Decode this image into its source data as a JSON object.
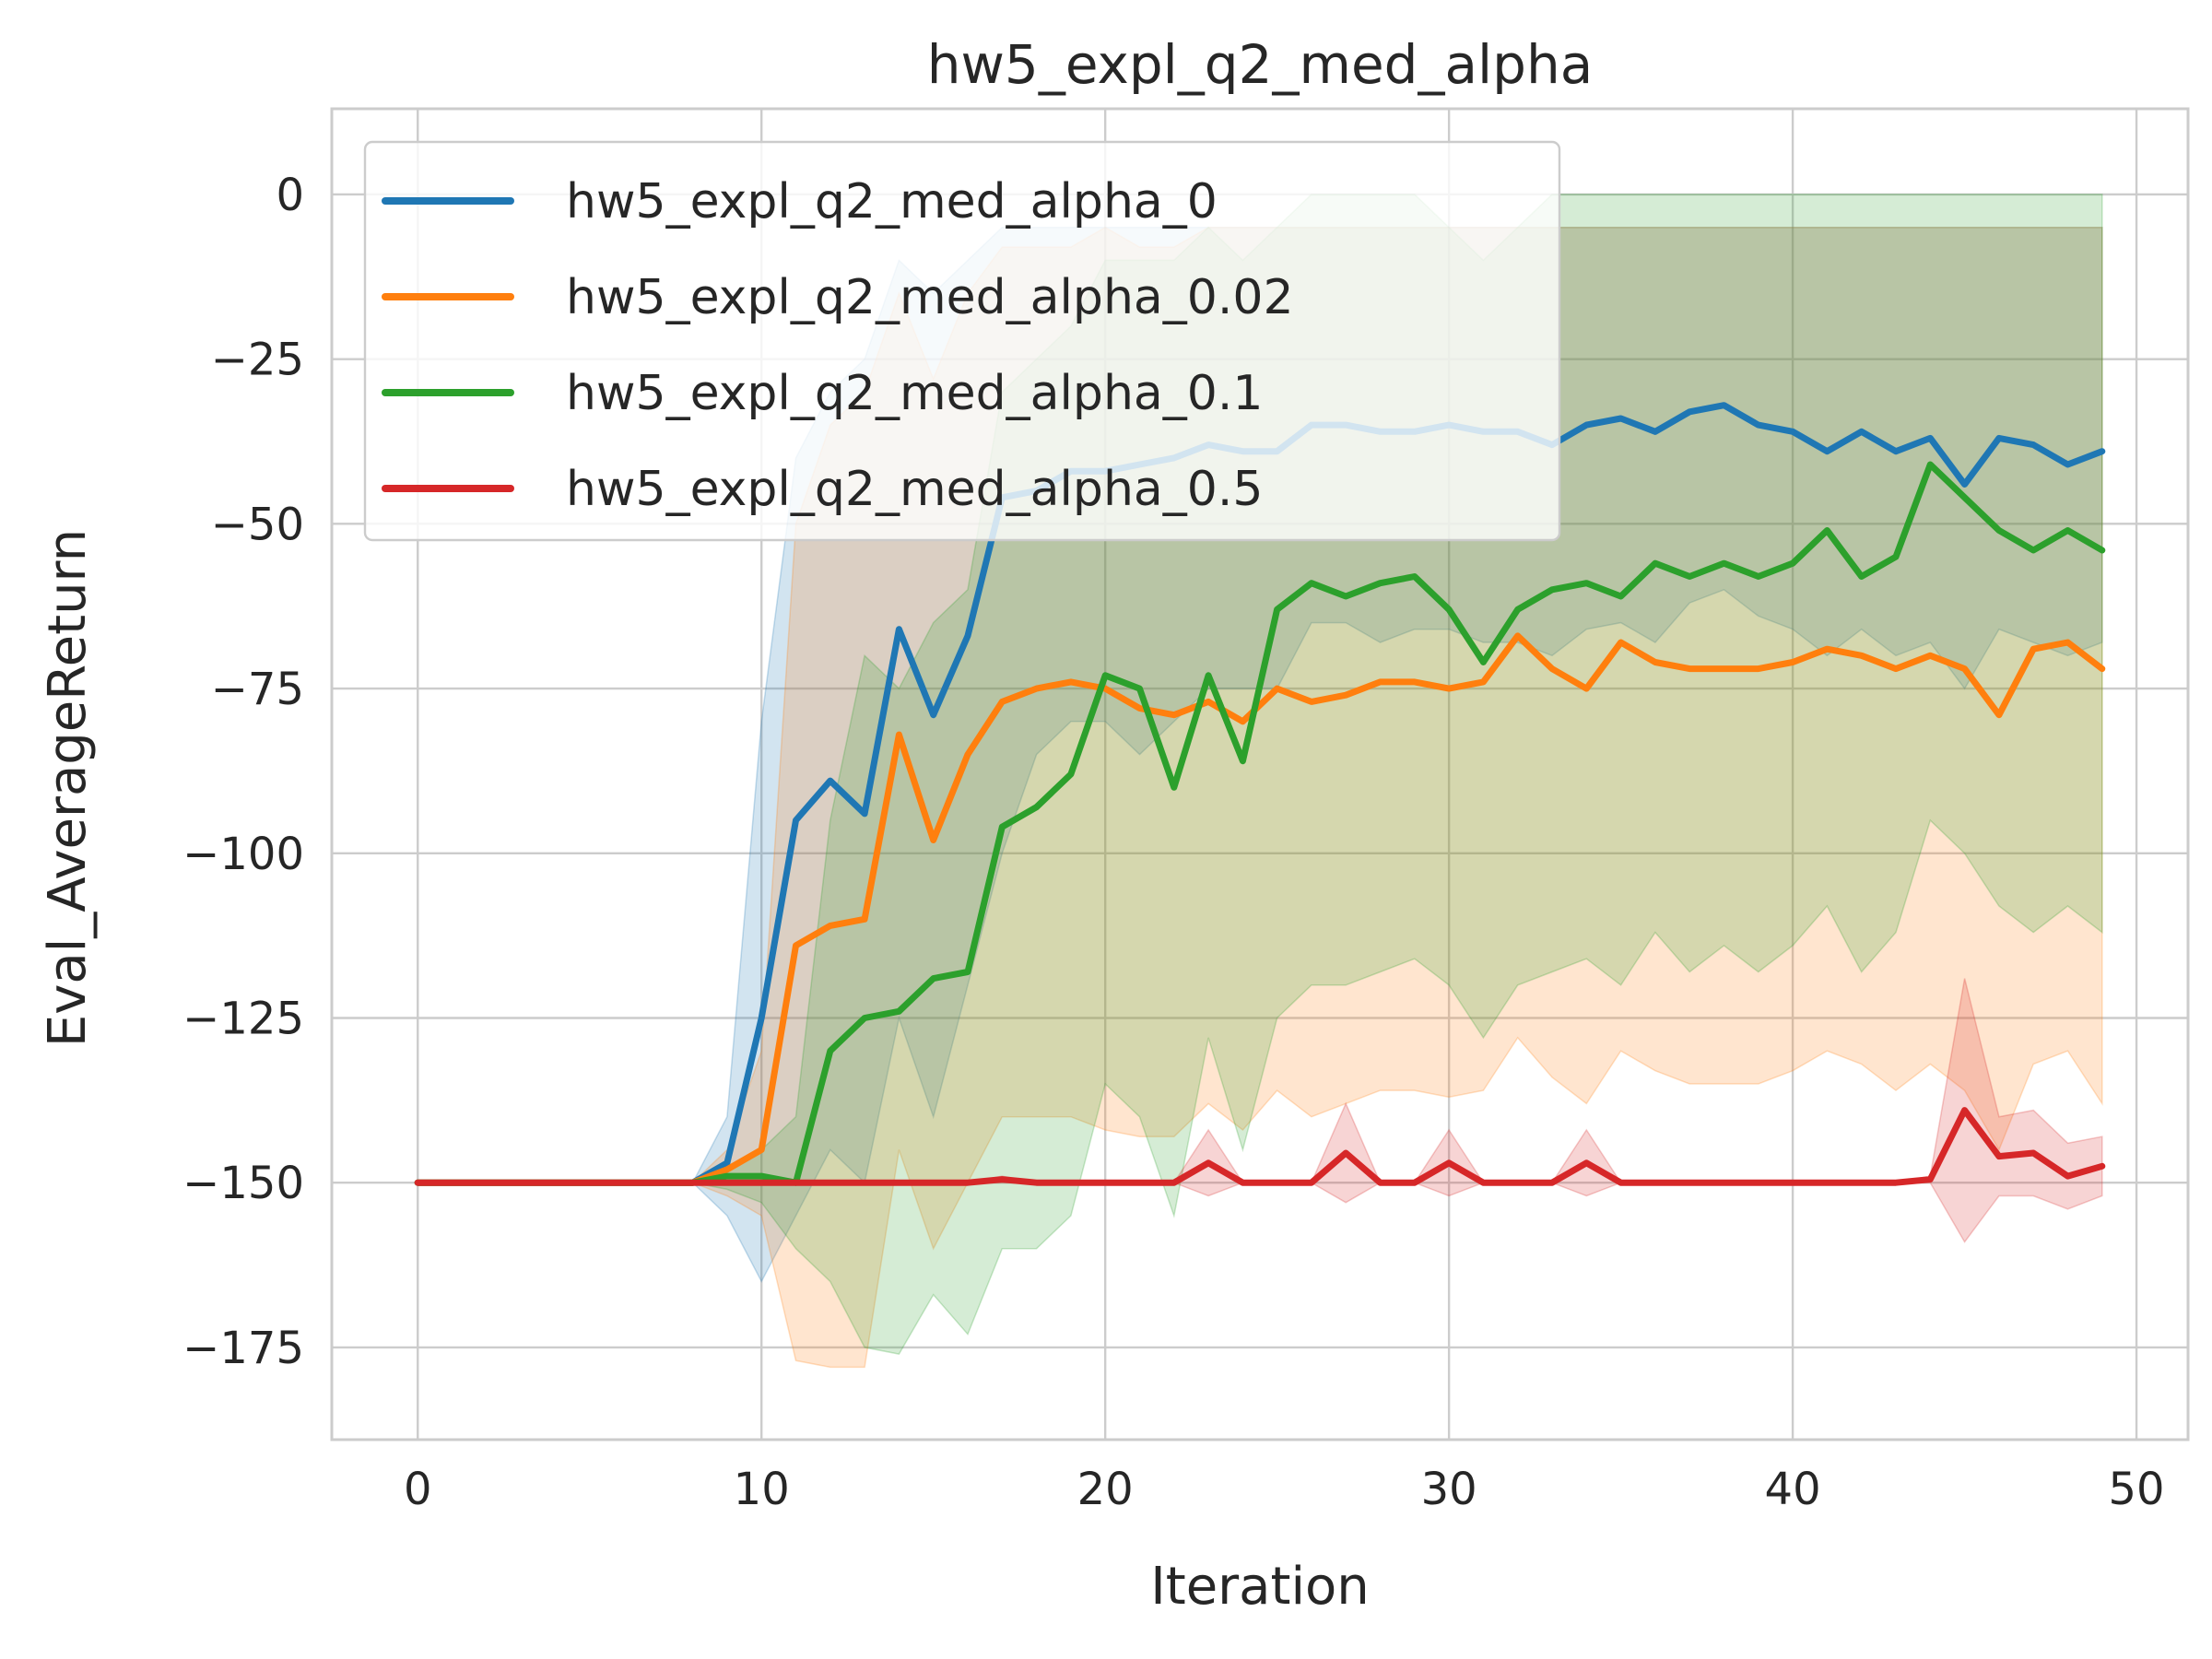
{
  "chart_data": {
    "type": "line",
    "title": "hw5_expl_q2_med_alpha",
    "xlabel": "Iteration",
    "ylabel": "Eval_AverageReturn",
    "xlim": [
      -2.5,
      51.5
    ],
    "ylim": [
      -189,
      13
    ],
    "xticks": [
      0,
      10,
      20,
      30,
      40,
      50
    ],
    "xtick_labels": [
      "0",
      "10",
      "20",
      "30",
      "40",
      "50"
    ],
    "yticks": [
      0,
      -25,
      -50,
      -75,
      -100,
      -125,
      -150,
      -175
    ],
    "ytick_labels": [
      "0",
      "−25",
      "−50",
      "−75",
      "−100",
      "−125",
      "−150",
      "−175"
    ],
    "grid": true,
    "legend_position": "upper-left",
    "x": [
      0,
      1,
      2,
      3,
      4,
      5,
      6,
      7,
      8,
      9,
      10,
      11,
      12,
      13,
      14,
      15,
      16,
      17,
      18,
      19,
      20,
      21,
      22,
      23,
      24,
      25,
      26,
      27,
      28,
      29,
      30,
      31,
      32,
      33,
      34,
      35,
      36,
      37,
      38,
      39,
      40,
      41,
      42,
      43,
      44,
      45,
      46,
      47,
      48,
      49
    ],
    "series": [
      {
        "name": "hw5_expl_q2_med_alpha_0",
        "color": "#1f77b4",
        "values": [
          -150,
          -150,
          -150,
          -150,
          -150,
          -150,
          -150,
          -150,
          -150,
          -147,
          -125,
          -95,
          -89,
          -94,
          -66,
          -79,
          -67,
          -46,
          -45,
          -42,
          -42,
          -41,
          -40,
          -38,
          -39,
          -39,
          -35,
          -35,
          -36,
          -36,
          -35,
          -36,
          -36,
          -38,
          -35,
          -34,
          -36,
          -33,
          -32,
          -35,
          -36,
          -39,
          -36,
          -39,
          -37,
          -44,
          -37,
          -38,
          -41,
          -39
        ],
        "upper": [
          -150,
          -150,
          -150,
          -150,
          -150,
          -150,
          -150,
          -150,
          -150,
          -140,
          -80,
          -40,
          -30,
          -25,
          -10,
          -15,
          -10,
          -5,
          -5,
          -5,
          -5,
          -5,
          -5,
          -5,
          -5,
          -5,
          -5,
          -5,
          -5,
          -5,
          -5,
          -5,
          -5,
          -5,
          -5,
          -5,
          -5,
          -5,
          -5,
          -5,
          -5,
          -5,
          -5,
          -5,
          -5,
          -5,
          -5,
          -5,
          -5,
          -5
        ],
        "lower": [
          -150,
          -150,
          -150,
          -150,
          -150,
          -150,
          -150,
          -150,
          -150,
          -155,
          -165,
          -155,
          -145,
          -150,
          -125,
          -140,
          -120,
          -100,
          -85,
          -80,
          -80,
          -85,
          -80,
          -75,
          -75,
          -75,
          -65,
          -65,
          -68,
          -66,
          -66,
          -68,
          -68,
          -70,
          -66,
          -65,
          -68,
          -62,
          -60,
          -64,
          -66,
          -70,
          -66,
          -70,
          -68,
          -75,
          -66,
          -68,
          -70,
          -68
        ]
      },
      {
        "name": "hw5_expl_q2_med_alpha_0.02",
        "color": "#ff7f0e",
        "values": [
          -150,
          -150,
          -150,
          -150,
          -150,
          -150,
          -150,
          -150,
          -150,
          -148,
          -145,
          -114,
          -111,
          -110,
          -82,
          -98,
          -85,
          -77,
          -75,
          -74,
          -75,
          -78,
          -79,
          -77,
          -80,
          -75,
          -77,
          -76,
          -74,
          -74,
          -75,
          -74,
          -67,
          -72,
          -75,
          -68,
          -71,
          -72,
          -72,
          -72,
          -71,
          -69,
          -70,
          -72,
          -70,
          -72,
          -79,
          -69,
          -68,
          -72
        ],
        "upper": [
          -150,
          -150,
          -150,
          -150,
          -150,
          -150,
          -150,
          -150,
          -150,
          -145,
          -130,
          -50,
          -35,
          -30,
          -15,
          -28,
          -15,
          -8,
          -8,
          -8,
          -5,
          -8,
          -8,
          -5,
          -5,
          -5,
          -5,
          -5,
          -5,
          -5,
          -5,
          -5,
          -5,
          -5,
          -5,
          -5,
          -5,
          -5,
          -5,
          -5,
          -5,
          -5,
          -5,
          -5,
          -5,
          -5,
          -5,
          -5,
          -5,
          -5
        ],
        "lower": [
          -150,
          -150,
          -150,
          -150,
          -150,
          -150,
          -150,
          -150,
          -150,
          -152,
          -155,
          -177,
          -178,
          -178,
          -145,
          -160,
          -150,
          -140,
          -140,
          -140,
          -142,
          -143,
          -143,
          -138,
          -142,
          -136,
          -140,
          -138,
          -136,
          -136,
          -137,
          -136,
          -128,
          -134,
          -138,
          -130,
          -133,
          -135,
          -135,
          -135,
          -133,
          -130,
          -132,
          -136,
          -132,
          -136,
          -145,
          -132,
          -130,
          -138
        ]
      },
      {
        "name": "hw5_expl_q2_med_alpha_0.1",
        "color": "#2ca02c",
        "values": [
          -150,
          -150,
          -150,
          -150,
          -150,
          -150,
          -150,
          -150,
          -150,
          -149,
          -149,
          -150,
          -130,
          -125,
          -124,
          -119,
          -118,
          -96,
          -93,
          -88,
          -73,
          -75,
          -90,
          -73,
          -86,
          -63,
          -59,
          -61,
          -59,
          -58,
          -63,
          -71,
          -63,
          -60,
          -59,
          -61,
          -56,
          -58,
          -56,
          -58,
          -56,
          -51,
          -58,
          -55,
          -41,
          -46,
          -51,
          -54,
          -51,
          -54
        ],
        "upper": [
          -150,
          -150,
          -150,
          -150,
          -150,
          -150,
          -150,
          -150,
          -150,
          -148,
          -145,
          -140,
          -95,
          -70,
          -75,
          -65,
          -60,
          -30,
          -25,
          -20,
          -10,
          -10,
          -10,
          -5,
          -10,
          -5,
          0,
          0,
          0,
          0,
          -5,
          -10,
          -5,
          0,
          0,
          0,
          0,
          0,
          0,
          0,
          0,
          0,
          0,
          0,
          0,
          0,
          0,
          0,
          0,
          0
        ],
        "lower": [
          -150,
          -150,
          -150,
          -150,
          -150,
          -150,
          -150,
          -150,
          -150,
          -151,
          -153,
          -160,
          -165,
          -175,
          -176,
          -167,
          -173,
          -160,
          -160,
          -155,
          -135,
          -140,
          -155,
          -128,
          -145,
          -125,
          -120,
          -120,
          -118,
          -116,
          -120,
          -128,
          -120,
          -118,
          -116,
          -120,
          -112,
          -118,
          -114,
          -118,
          -114,
          -108,
          -118,
          -112,
          -95,
          -100,
          -108,
          -112,
          -108,
          -112
        ]
      },
      {
        "name": "hw5_expl_q2_med_alpha_0.5",
        "color": "#d62728",
        "values": [
          -150,
          -150,
          -150,
          -150,
          -150,
          -150,
          -150,
          -150,
          -150,
          -150,
          -150,
          -150,
          -150,
          -150,
          -150,
          -150,
          -150,
          -149.5,
          -150,
          -150,
          -150,
          -150,
          -150,
          -147,
          -150,
          -150,
          -150,
          -145.5,
          -150,
          -150,
          -147,
          -150,
          -150,
          -150,
          -147,
          -150,
          -150,
          -150,
          -150,
          -150,
          -150,
          -150,
          -150,
          -150,
          -149.5,
          -139,
          -146,
          -145.5,
          -149,
          -147.5
        ],
        "upper": [
          -150,
          -150,
          -150,
          -150,
          -150,
          -150,
          -150,
          -150,
          -150,
          -150,
          -150,
          -150,
          -150,
          -150,
          -150,
          -150,
          -150,
          -149,
          -150,
          -150,
          -150,
          -150,
          -150,
          -142,
          -150,
          -150,
          -150,
          -138,
          -150,
          -150,
          -142,
          -150,
          -150,
          -150,
          -142,
          -150,
          -150,
          -150,
          -150,
          -150,
          -150,
          -150,
          -150,
          -150,
          -149,
          -119,
          -140,
          -139,
          -144,
          -143
        ],
        "lower": [
          -150,
          -150,
          -150,
          -150,
          -150,
          -150,
          -150,
          -150,
          -150,
          -150,
          -150,
          -150,
          -150,
          -150,
          -150,
          -150,
          -150,
          -150,
          -150,
          -150,
          -150,
          -150,
          -150,
          -152,
          -150,
          -150,
          -150,
          -153,
          -150,
          -150,
          -152,
          -150,
          -150,
          -150,
          -152,
          -150,
          -150,
          -150,
          -150,
          -150,
          -150,
          -150,
          -150,
          -150,
          -150,
          -159,
          -152,
          -152,
          -154,
          -152
        ]
      }
    ]
  }
}
